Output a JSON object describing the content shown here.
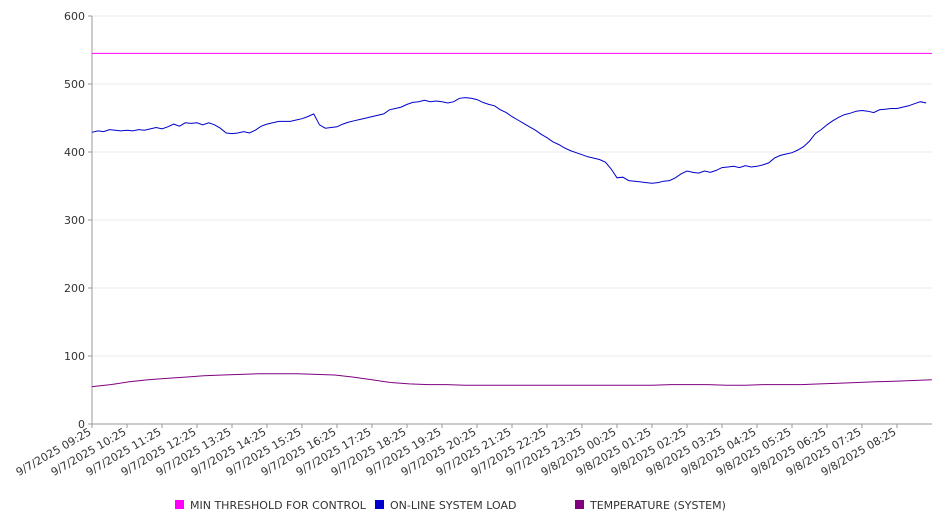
{
  "chart_data": {
    "type": "line",
    "title": "",
    "xlabel": "",
    "ylabel": "",
    "ylim": [
      0,
      600
    ],
    "yticks": [
      0,
      100,
      200,
      300,
      400,
      500,
      600
    ],
    "grid": true,
    "legend_position": "bottom",
    "x_tick_labels": [
      "9/7/2025 09:25",
      "9/7/2025 10:25",
      "9/7/2025 11:25",
      "9/7/2025 12:25",
      "9/7/2025 13:25",
      "9/7/2025 14:25",
      "9/7/2025 15:25",
      "9/7/2025 16:25",
      "9/7/2025 17:25",
      "9/7/2025 18:25",
      "9/7/2025 19:25",
      "9/7/2025 20:25",
      "9/7/2025 21:25",
      "9/7/2025 22:25",
      "9/7/2025 23:25",
      "9/8/2025 00:25",
      "9/8/2025 01:25",
      "9/8/2025 02:25",
      "9/8/2025 03:25",
      "9/8/2025 04:25",
      "9/8/2025 05:25",
      "9/8/2025 06:25",
      "9/8/2025 07:25",
      "9/8/2025 08:25"
    ],
    "x_end": "9/8/2025 09:25",
    "series": [
      {
        "name": "MIN THRESHOLD FOR CONTROL",
        "color": "#ff00ff",
        "points": [
          [
            0,
            545
          ],
          [
            24,
            545
          ]
        ]
      },
      {
        "name": "ON-LINE SYSTEM LOAD",
        "color": "#0000cc",
        "points": [
          [
            0,
            429
          ],
          [
            0.25,
            431
          ],
          [
            0.5,
            430
          ],
          [
            0.75,
            433
          ],
          [
            1,
            432
          ],
          [
            1.25,
            431
          ],
          [
            1.5,
            432
          ],
          [
            1.75,
            431
          ],
          [
            2,
            433
          ],
          [
            2.25,
            432
          ],
          [
            2.5,
            434
          ],
          [
            2.75,
            436
          ],
          [
            3,
            434
          ],
          [
            3.25,
            437
          ],
          [
            3.5,
            441
          ],
          [
            3.75,
            438
          ],
          [
            4,
            443
          ],
          [
            4.25,
            442
          ],
          [
            4.5,
            443
          ],
          [
            4.75,
            440
          ],
          [
            5,
            443
          ],
          [
            5.25,
            440
          ],
          [
            5.5,
            435
          ],
          [
            5.75,
            428
          ],
          [
            6,
            427
          ],
          [
            6.25,
            428
          ],
          [
            6.5,
            430
          ],
          [
            6.75,
            428
          ],
          [
            7,
            432
          ],
          [
            7.25,
            438
          ],
          [
            7.5,
            441
          ],
          [
            7.75,
            443
          ],
          [
            8,
            445
          ],
          [
            8.25,
            445
          ],
          [
            8.5,
            445
          ],
          [
            8.75,
            447
          ],
          [
            9,
            449
          ],
          [
            9.25,
            452
          ],
          [
            9.5,
            456
          ],
          [
            9.75,
            440
          ],
          [
            10,
            435
          ],
          [
            10.25,
            436
          ],
          [
            10.5,
            437
          ],
          [
            10.75,
            441
          ],
          [
            11,
            444
          ],
          [
            11.25,
            446
          ],
          [
            11.5,
            448
          ],
          [
            11.75,
            450
          ],
          [
            12,
            452
          ],
          [
            12.25,
            454
          ],
          [
            12.5,
            456
          ],
          [
            12.75,
            462
          ],
          [
            13,
            464
          ],
          [
            13.25,
            466
          ],
          [
            13.5,
            470
          ],
          [
            13.75,
            473
          ],
          [
            14,
            474
          ],
          [
            14.25,
            476
          ],
          [
            14.5,
            474
          ],
          [
            14.75,
            475
          ],
          [
            15,
            474
          ],
          [
            15.25,
            472
          ],
          [
            15.5,
            474
          ],
          [
            15.75,
            479
          ],
          [
            16,
            480
          ],
          [
            16.25,
            479
          ],
          [
            16.5,
            477
          ],
          [
            16.75,
            473
          ],
          [
            17,
            470
          ],
          [
            17.25,
            468
          ],
          [
            17.5,
            462
          ],
          [
            17.75,
            458
          ],
          [
            18,
            452
          ],
          [
            18.25,
            447
          ],
          [
            18.5,
            442
          ],
          [
            18.75,
            437
          ],
          [
            19,
            432
          ],
          [
            19.25,
            426
          ],
          [
            19.5,
            421
          ],
          [
            19.75,
            415
          ],
          [
            20,
            411
          ],
          [
            20.25,
            406
          ],
          [
            20.5,
            402
          ],
          [
            20.75,
            399
          ],
          [
            21,
            396
          ],
          [
            21.25,
            393
          ],
          [
            21.5,
            391
          ],
          [
            21.75,
            389
          ],
          [
            22,
            385
          ],
          [
            22.25,
            375
          ],
          [
            22.5,
            362
          ],
          [
            22.75,
            363
          ],
          [
            23,
            358
          ],
          [
            23.25,
            357
          ],
          [
            23.5,
            356
          ],
          [
            23.75,
            355
          ],
          [
            24,
            354
          ],
          [
            24.25,
            355
          ],
          [
            24.5,
            357
          ],
          [
            24.75,
            358
          ],
          [
            25,
            362
          ],
          [
            25.25,
            368
          ],
          [
            25.5,
            372
          ],
          [
            25.75,
            370
          ],
          [
            26,
            369
          ],
          [
            26.25,
            372
          ],
          [
            26.5,
            370
          ],
          [
            26.75,
            373
          ],
          [
            27,
            377
          ],
          [
            27.25,
            378
          ],
          [
            27.5,
            379
          ],
          [
            27.75,
            377
          ],
          [
            28,
            380
          ],
          [
            28.25,
            378
          ],
          [
            28.5,
            379
          ],
          [
            28.75,
            381
          ],
          [
            29,
            384
          ],
          [
            29.25,
            391
          ],
          [
            29.5,
            395
          ],
          [
            29.75,
            397
          ],
          [
            30,
            399
          ],
          [
            30.25,
            403
          ],
          [
            30.5,
            408
          ],
          [
            30.75,
            416
          ],
          [
            31,
            427
          ],
          [
            31.25,
            433
          ],
          [
            31.5,
            440
          ],
          [
            31.75,
            446
          ],
          [
            32,
            451
          ],
          [
            32.25,
            455
          ],
          [
            32.5,
            457
          ],
          [
            32.75,
            460
          ],
          [
            33,
            461
          ],
          [
            33.25,
            460
          ],
          [
            33.5,
            458
          ],
          [
            33.75,
            462
          ],
          [
            34,
            463
          ],
          [
            34.25,
            464
          ],
          [
            34.5,
            464
          ],
          [
            34.75,
            466
          ],
          [
            35,
            468
          ],
          [
            35.25,
            471
          ],
          [
            35.5,
            474
          ],
          [
            35.75,
            472
          ]
        ],
        "x_scale": 0.6667
      },
      {
        "name": "TEMPERATURE (SYSTEM)",
        "color": "#800080",
        "points": [
          [
            0,
            55
          ],
          [
            1,
            58
          ],
          [
            2,
            62
          ],
          [
            3,
            65
          ],
          [
            4,
            67
          ],
          [
            5,
            69
          ],
          [
            6,
            71
          ],
          [
            7,
            72
          ],
          [
            8,
            73
          ],
          [
            9,
            74
          ],
          [
            10,
            74
          ],
          [
            11,
            74
          ],
          [
            12,
            73
          ],
          [
            13,
            72
          ],
          [
            14,
            69
          ],
          [
            15,
            65
          ],
          [
            16,
            61
          ],
          [
            17,
            59
          ],
          [
            18,
            58
          ],
          [
            19,
            58
          ],
          [
            20,
            57
          ],
          [
            21,
            57
          ],
          [
            22,
            57
          ],
          [
            23,
            57
          ],
          [
            24,
            57
          ],
          [
            25,
            57
          ],
          [
            26,
            57
          ],
          [
            27,
            57
          ],
          [
            28,
            57
          ],
          [
            29,
            57
          ],
          [
            30,
            57
          ],
          [
            31,
            58
          ],
          [
            32,
            58
          ],
          [
            33,
            58
          ],
          [
            34,
            57
          ],
          [
            35,
            57
          ],
          [
            36,
            58
          ],
          [
            37,
            58
          ],
          [
            38,
            58
          ],
          [
            39,
            59
          ],
          [
            40,
            60
          ],
          [
            41,
            61
          ],
          [
            42,
            62
          ],
          [
            43,
            63
          ],
          [
            44,
            64
          ],
          [
            45,
            65
          ]
        ],
        "x_scale": 0.5333
      }
    ]
  }
}
